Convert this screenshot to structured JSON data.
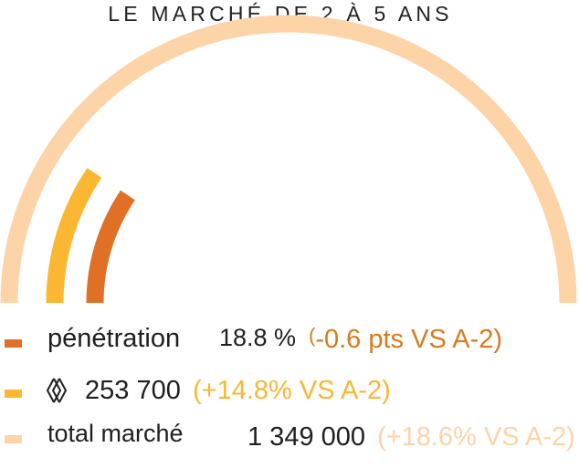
{
  "title": "LE MARCHÉ DE 2 À 5 ANS",
  "colors": {
    "total": "#FDD3A8",
    "brand": "#FBB632",
    "penetration": "#E07026",
    "penetration_delta": "#D97A1E"
  },
  "legend": {
    "penetration": {
      "label": "pénétration",
      "value": "18.8 %",
      "delta_open": "(",
      "delta_text": "-0.6 pts VS A-2)"
    },
    "brand": {
      "icon": "renault-logo-icon",
      "value": "253 700",
      "delta": "(+14.8% VS A-2)"
    },
    "total": {
      "label": "total marché",
      "value": "1 349 000",
      "delta": "(+18.6% VS A-2)"
    }
  },
  "chart_data": {
    "type": "gauge",
    "series": [
      {
        "name": "total marché",
        "value": 1349000,
        "fraction_of_semicircle": 1.0
      },
      {
        "name": "Renault",
        "value": 253700,
        "fraction_of_semicircle": 0.188
      },
      {
        "name": "pénétration",
        "value": 18.8,
        "unit": "%",
        "fraction_of_semicircle": 0.188
      }
    ]
  }
}
